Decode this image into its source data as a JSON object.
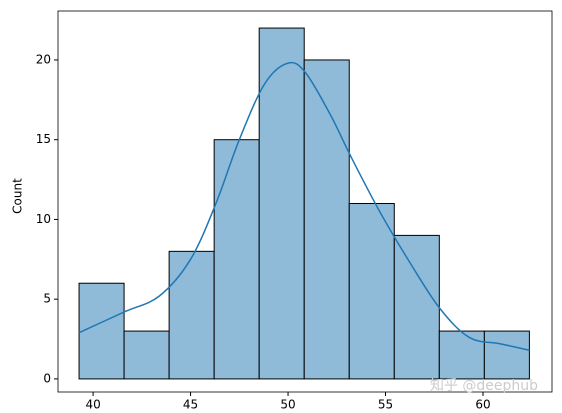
{
  "chart_data": {
    "type": "histogram",
    "ylabel": "Count",
    "bins": [
      39.28,
      41.59,
      43.9,
      46.21,
      48.52,
      50.83,
      53.14,
      55.45,
      57.76,
      60.07,
      62.38
    ],
    "values": [
      6,
      3,
      8,
      15,
      22,
      20,
      11,
      9,
      3,
      3
    ],
    "color": "#8fbbd9",
    "edgecolor": "#000000",
    "kde": {
      "color": "#1f77b4",
      "x": [
        39.28,
        41.6,
        43.4,
        45,
        46.3,
        47.5,
        48.8,
        50,
        50.9,
        52.2,
        53.2,
        54.7,
        56.3,
        57.8,
        59.3,
        60.9,
        62.38
      ],
      "y": [
        2.9,
        4.2,
        5.2,
        7.5,
        11,
        15,
        18.5,
        19.8,
        19.2,
        16.5,
        14,
        10.5,
        7.2,
        4.4,
        2.6,
        2.2,
        1.8
      ]
    },
    "xlim": [
      38.2,
      63.54
    ],
    "ylim": [
      -0.82,
      23.07
    ],
    "xticks": [
      40,
      45,
      50,
      55,
      60
    ],
    "yticks": [
      0,
      5,
      10,
      15,
      20
    ],
    "watermark": "知乎 @deephub"
  }
}
